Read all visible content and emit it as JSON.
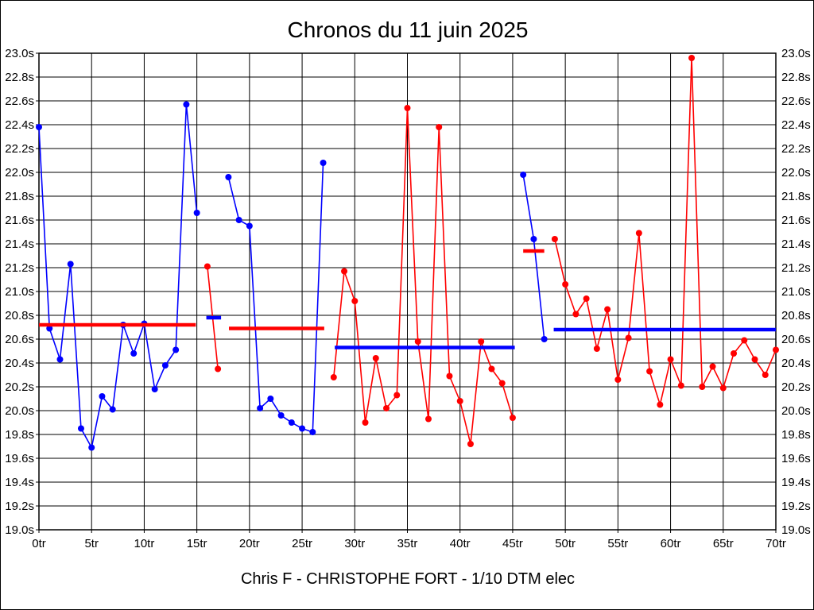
{
  "chart_data": {
    "type": "line",
    "title": "Chronos du 11 juin 2025",
    "caption": "Chris F - CHRISTOPHE FORT - 1/10 DTM elec",
    "x_unit": "tr",
    "y_unit": "s",
    "xlim": [
      0,
      70
    ],
    "ylim": [
      19.0,
      23.0
    ],
    "x_tick_step": 5,
    "y_tick_step": 0.2,
    "grid": true,
    "x_tick_labels": [
      "0tr",
      "5tr",
      "10tr",
      "15tr",
      "20tr",
      "25tr",
      "30tr",
      "35tr",
      "40tr",
      "45tr",
      "50tr",
      "55tr",
      "60tr",
      "65tr",
      "70tr"
    ],
    "y_tick_labels": [
      "19.0s",
      "19.2s",
      "19.4s",
      "19.6s",
      "19.8s",
      "20.0s",
      "20.2s",
      "20.4s",
      "20.6s",
      "20.8s",
      "21.0s",
      "21.2s",
      "21.4s",
      "21.6s",
      "21.8s",
      "22.0s",
      "22.2s",
      "22.4s",
      "22.6s",
      "22.8s",
      "23.0s"
    ],
    "colors": {
      "blue": "#0000ff",
      "red": "#ff0000",
      "grid": "#000000",
      "text": "#000000",
      "background": "#ffffff"
    },
    "stints": [
      {
        "name": "stint-1",
        "color": "blue",
        "start_lap": 0,
        "times": [
          22.38,
          20.69,
          20.43,
          21.23,
          19.85,
          19.69,
          20.12,
          20.01,
          20.72,
          20.48,
          20.73,
          20.18,
          20.38,
          20.51,
          22.57,
          21.66
        ],
        "avg_line": {
          "color": "red",
          "value": 20.72,
          "from_lap": 0,
          "to_lap": 14.9
        }
      },
      {
        "name": "stint-2",
        "color": "red",
        "start_lap": 16,
        "times": [
          21.21,
          20.35
        ],
        "avg_line": {
          "color": "blue",
          "value": 20.78,
          "from_lap": 15.9,
          "to_lap": 17.3
        }
      },
      {
        "name": "stint-3",
        "color": "blue",
        "start_lap": 18,
        "times": [
          21.96,
          21.6,
          21.55,
          20.02,
          20.1,
          19.96,
          19.9,
          19.85,
          19.82,
          22.08
        ],
        "avg_line": {
          "color": "red",
          "value": 20.69,
          "from_lap": 18.05,
          "to_lap": 27.1
        }
      },
      {
        "name": "stint-4",
        "color": "red",
        "start_lap": 28,
        "times": [
          20.28,
          21.17,
          20.92,
          19.9,
          20.44,
          20.02,
          20.13,
          22.54,
          20.58,
          19.93,
          22.38,
          20.29,
          20.08,
          19.72,
          20.58,
          20.35,
          20.23,
          19.94
        ],
        "avg_line": {
          "color": "blue",
          "value": 20.53,
          "from_lap": 28.1,
          "to_lap": 45.2
        }
      },
      {
        "name": "stint-5",
        "color": "blue",
        "start_lap": 46,
        "times": [
          21.98,
          21.44,
          20.6
        ],
        "avg_line": {
          "color": "red",
          "value": 21.34,
          "from_lap": 46.0,
          "to_lap": 48.0
        }
      },
      {
        "name": "stint-6",
        "color": "red",
        "start_lap": 49,
        "times": [
          21.44,
          21.06,
          20.81,
          20.94,
          20.52,
          20.85,
          20.26,
          20.61,
          21.49,
          20.33,
          20.05,
          20.43,
          20.21,
          22.96,
          20.2,
          20.37,
          20.19,
          20.48,
          20.59,
          20.43,
          20.3,
          20.51
        ],
        "avg_line": {
          "color": "blue",
          "value": 20.68,
          "from_lap": 48.9,
          "to_lap": 70
        }
      }
    ]
  }
}
